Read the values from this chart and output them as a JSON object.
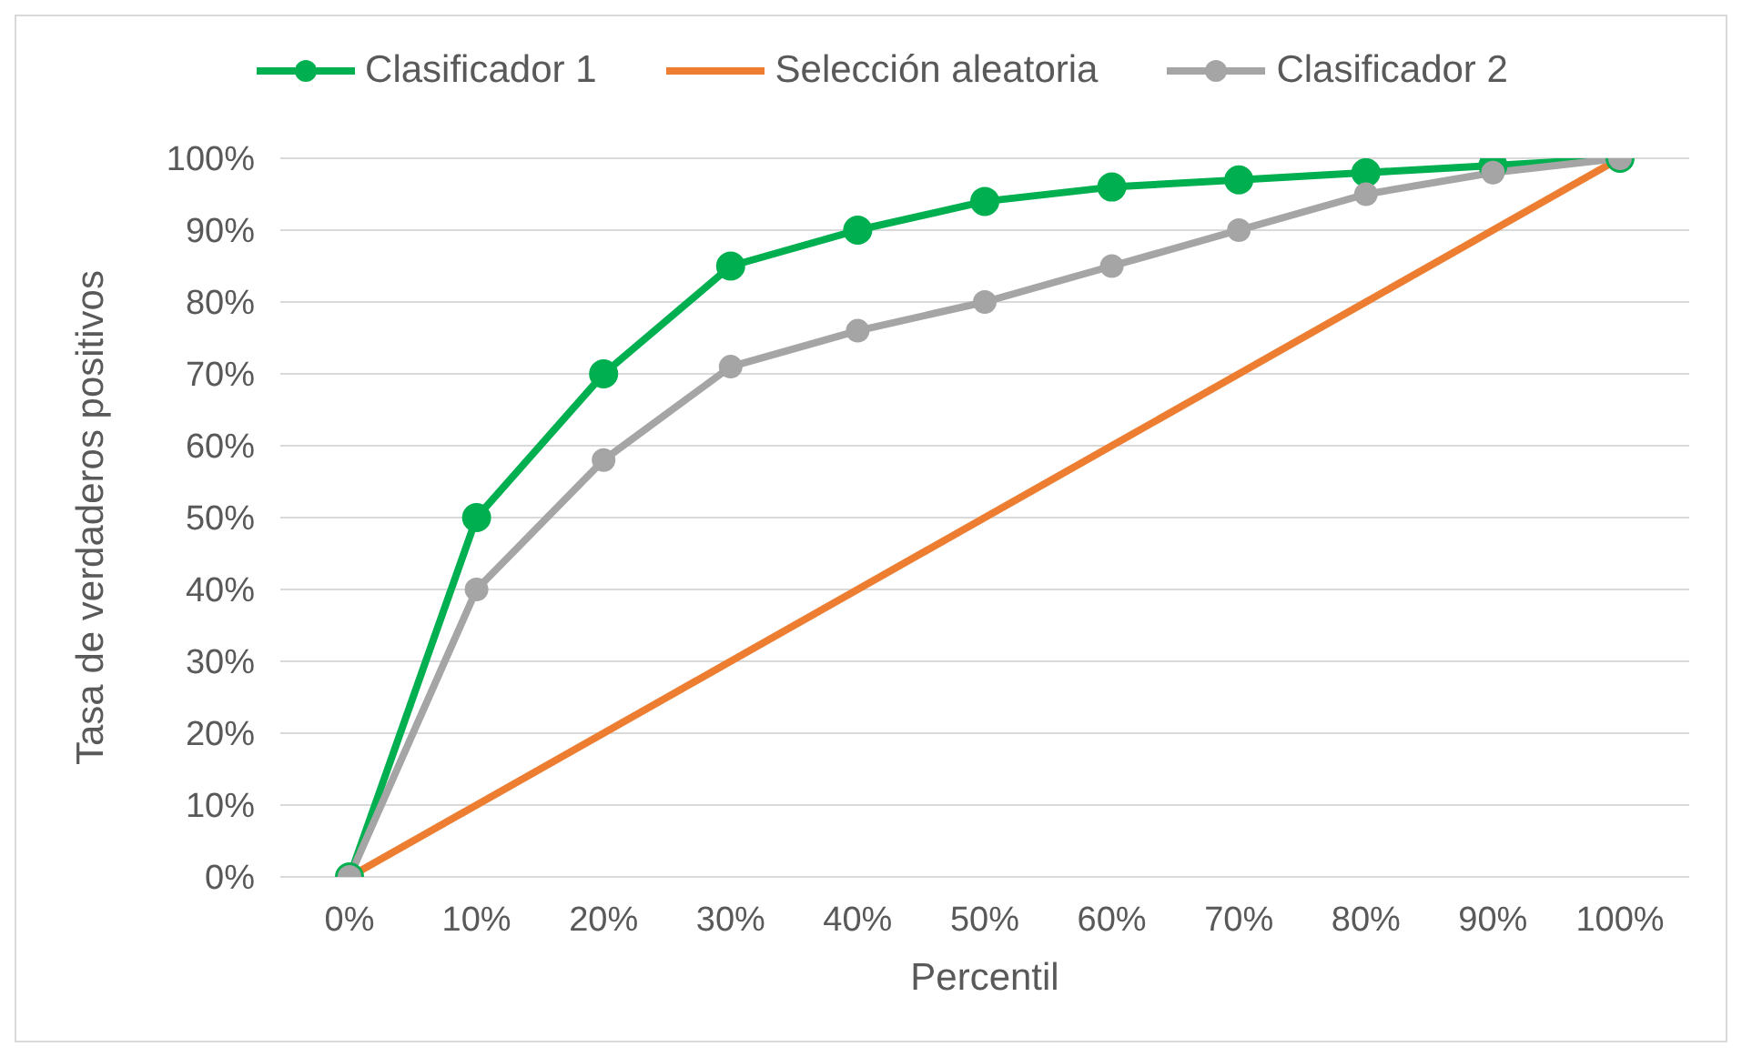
{
  "chart_data": {
    "type": "line",
    "xlabel": "Percentil",
    "ylabel": "Tasa de verdaderos positivos",
    "categories": [
      "0%",
      "10%",
      "20%",
      "30%",
      "40%",
      "50%",
      "60%",
      "70%",
      "80%",
      "90%",
      "100%"
    ],
    "series": [
      {
        "name": "Clasificador 1",
        "color": "#00b050",
        "marker": "circle",
        "values": [
          0,
          50,
          70,
          85,
          90,
          94,
          96,
          97,
          98,
          99,
          100
        ]
      },
      {
        "name": "Selección aleatoria",
        "color": "#ed7d31",
        "marker": "none",
        "values": [
          0,
          10,
          20,
          30,
          40,
          50,
          60,
          70,
          80,
          90,
          100
        ]
      },
      {
        "name": "Clasificador 2",
        "color": "#a5a5a5",
        "marker": "circle",
        "values": [
          0,
          40,
          58,
          71,
          76,
          80,
          85,
          90,
          95,
          98,
          100
        ]
      }
    ],
    "ylim": [
      0,
      100
    ],
    "yticks": [
      {
        "value": 0,
        "label": "0%"
      },
      {
        "value": 10,
        "label": "10%"
      },
      {
        "value": 20,
        "label": "20%"
      },
      {
        "value": 30,
        "label": "30%"
      },
      {
        "value": 40,
        "label": "40%"
      },
      {
        "value": 50,
        "label": "50%"
      },
      {
        "value": 60,
        "label": "60%"
      },
      {
        "value": 70,
        "label": "70%"
      },
      {
        "value": 80,
        "label": "80%"
      },
      {
        "value": 90,
        "label": "90%"
      },
      {
        "value": 100,
        "label": "100%"
      }
    ],
    "grid": "y",
    "legend": "top"
  }
}
